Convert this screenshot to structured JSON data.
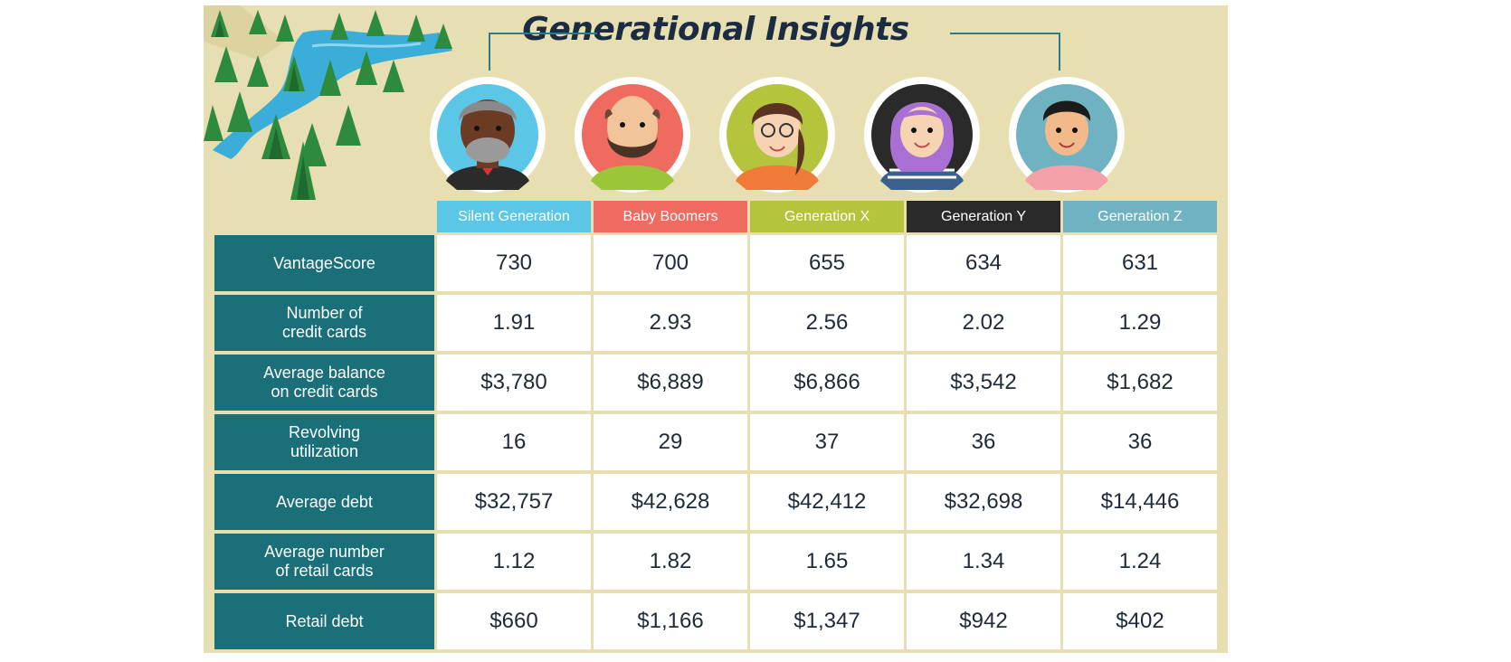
{
  "title": "Generational Insights",
  "colors": {
    "background": "#e7dfb2",
    "row_label_bg": "#1a6f79",
    "silent": "#5cc6e6",
    "boomers": "#ef6a5f",
    "genx": "#b4c43c",
    "geny": "#2a2a2a",
    "genz": "#6fb2c1"
  },
  "generations": [
    {
      "label": "Silent Generation",
      "color": "#5cc6e6"
    },
    {
      "label": "Baby Boomers",
      "color": "#ef6a5f"
    },
    {
      "label": "Generation X",
      "color": "#b4c43c"
    },
    {
      "label": "Generation Y",
      "color": "#2a2a2a"
    },
    {
      "label": "Generation Z",
      "color": "#6fb2c1"
    }
  ],
  "rows": [
    {
      "label": "VantageScore",
      "values": [
        "730",
        "700",
        "655",
        "634",
        "631"
      ]
    },
    {
      "label": "Number of\ncredit cards",
      "values": [
        "1.91",
        "2.93",
        "2.56",
        "2.02",
        "1.29"
      ]
    },
    {
      "label": "Average balance\non credit cards",
      "values": [
        "$3,780",
        "$6,889",
        "$6,866",
        "$3,542",
        "$1,682"
      ]
    },
    {
      "label": "Revolving\nutilization",
      "values": [
        "16",
        "29",
        "37",
        "36",
        "36"
      ]
    },
    {
      "label": "Average debt",
      "values": [
        "$32,757",
        "$42,628",
        "$42,412",
        "$32,698",
        "$14,446"
      ]
    },
    {
      "label": "Average number\nof retail cards",
      "values": [
        "1.12",
        "1.82",
        "1.65",
        "1.34",
        "1.24"
      ]
    },
    {
      "label": "Retail debt",
      "values": [
        "$660",
        "$1,166",
        "$1,347",
        "$942",
        "$402"
      ]
    }
  ]
}
